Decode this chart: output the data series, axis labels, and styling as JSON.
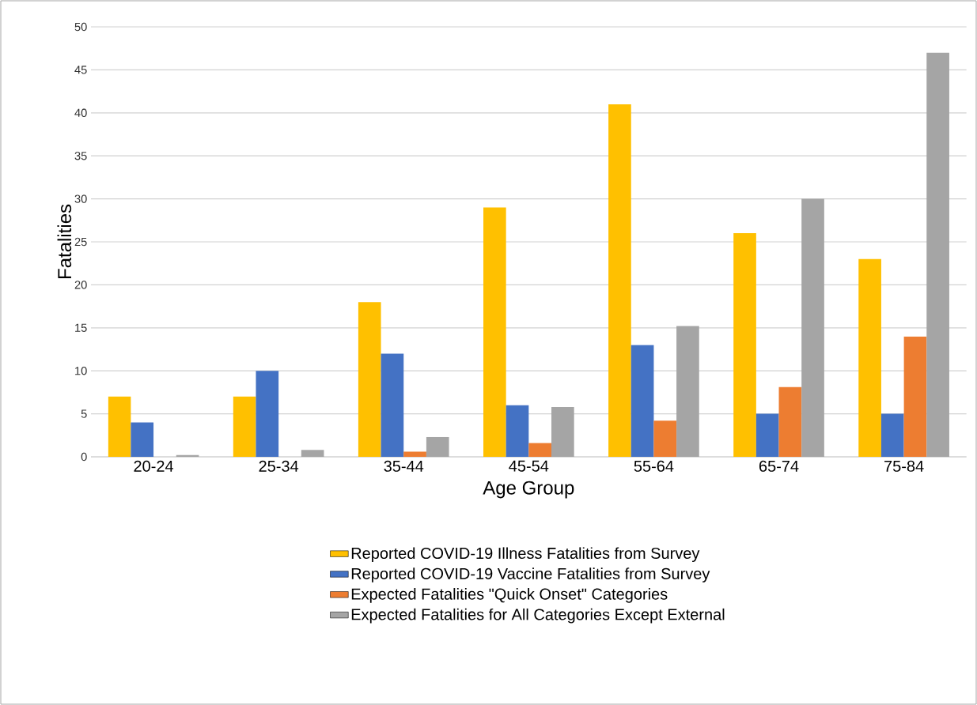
{
  "chart_data": {
    "type": "bar",
    "xlabel": "Age Group",
    "ylabel": "Fatalities",
    "categories": [
      "20-24",
      "25-34",
      "35-44",
      "45-54",
      "55-64",
      "65-74",
      "75-84"
    ],
    "series": [
      {
        "name": "Reported COVID-19 Illness Fatalities from Survey",
        "color": "#ffc000",
        "values": [
          7,
          7,
          18,
          29,
          41,
          26,
          23
        ]
      },
      {
        "name": "Reported COVID-19 Vaccine Fatalities from Survey",
        "color": "#4472c4",
        "values": [
          4,
          10,
          12,
          6,
          13,
          5,
          5
        ]
      },
      {
        "name": "Expected Fatalities \"Quick Onset\" Categories",
        "color": "#ed7d31",
        "values": [
          0,
          0,
          0.6,
          1.6,
          4.2,
          8.1,
          14
        ]
      },
      {
        "name": "Expected Fatalities for All Categories Except External",
        "color": "#a5a5a5",
        "values": [
          0.2,
          0.8,
          2.3,
          5.8,
          15.2,
          30,
          47
        ]
      }
    ],
    "ylim": [
      0,
      50
    ],
    "yticks": [
      0,
      5,
      10,
      15,
      20,
      25,
      30,
      35,
      40,
      45,
      50
    ],
    "grid": "y",
    "legend": "bottom"
  }
}
